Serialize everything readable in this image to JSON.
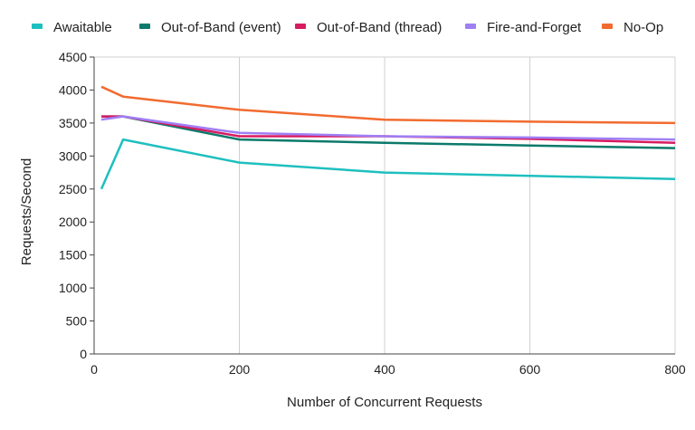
{
  "chart_data": {
    "type": "line",
    "title": "",
    "xlabel": "Number of Concurrent Requests",
    "ylabel": "Requests/Second",
    "xlim": [
      0,
      800
    ],
    "ylim": [
      0,
      4500
    ],
    "x_ticks": [
      "0",
      "200",
      "400",
      "600",
      "800"
    ],
    "y_ticks": [
      "0",
      "500",
      "1000",
      "1500",
      "2000",
      "2500",
      "3000",
      "3500",
      "4000",
      "4500"
    ],
    "grid": "vertical",
    "legend_position": "top",
    "series": [
      {
        "name": "Awaitable",
        "color": "#1fbfbf",
        "x": [
          10,
          40,
          200,
          400,
          600,
          800
        ],
        "y": [
          2500,
          3250,
          2900,
          2750,
          2700,
          2650
        ]
      },
      {
        "name": "Out-of-Band (event)",
        "color": "#0b7a6b",
        "x": [
          10,
          40,
          200,
          400,
          600,
          800
        ],
        "y": [
          3600,
          3600,
          3250,
          3200,
          3160,
          3120
        ]
      },
      {
        "name": "Out-of-Band (thread)",
        "color": "#d81b60",
        "x": [
          10,
          40,
          200,
          400,
          600,
          800
        ],
        "y": [
          3600,
          3600,
          3300,
          3300,
          3260,
          3200
        ]
      },
      {
        "name": "Fire-and-Forget",
        "color": "#9f7ff5",
        "x": [
          10,
          40,
          200,
          400,
          600,
          800
        ],
        "y": [
          3550,
          3600,
          3350,
          3300,
          3280,
          3250
        ]
      },
      {
        "name": "No-Op",
        "color": "#f26b2f",
        "x": [
          10,
          40,
          200,
          400,
          600,
          800
        ],
        "y": [
          4050,
          3900,
          3700,
          3550,
          3520,
          3500
        ]
      }
    ]
  }
}
